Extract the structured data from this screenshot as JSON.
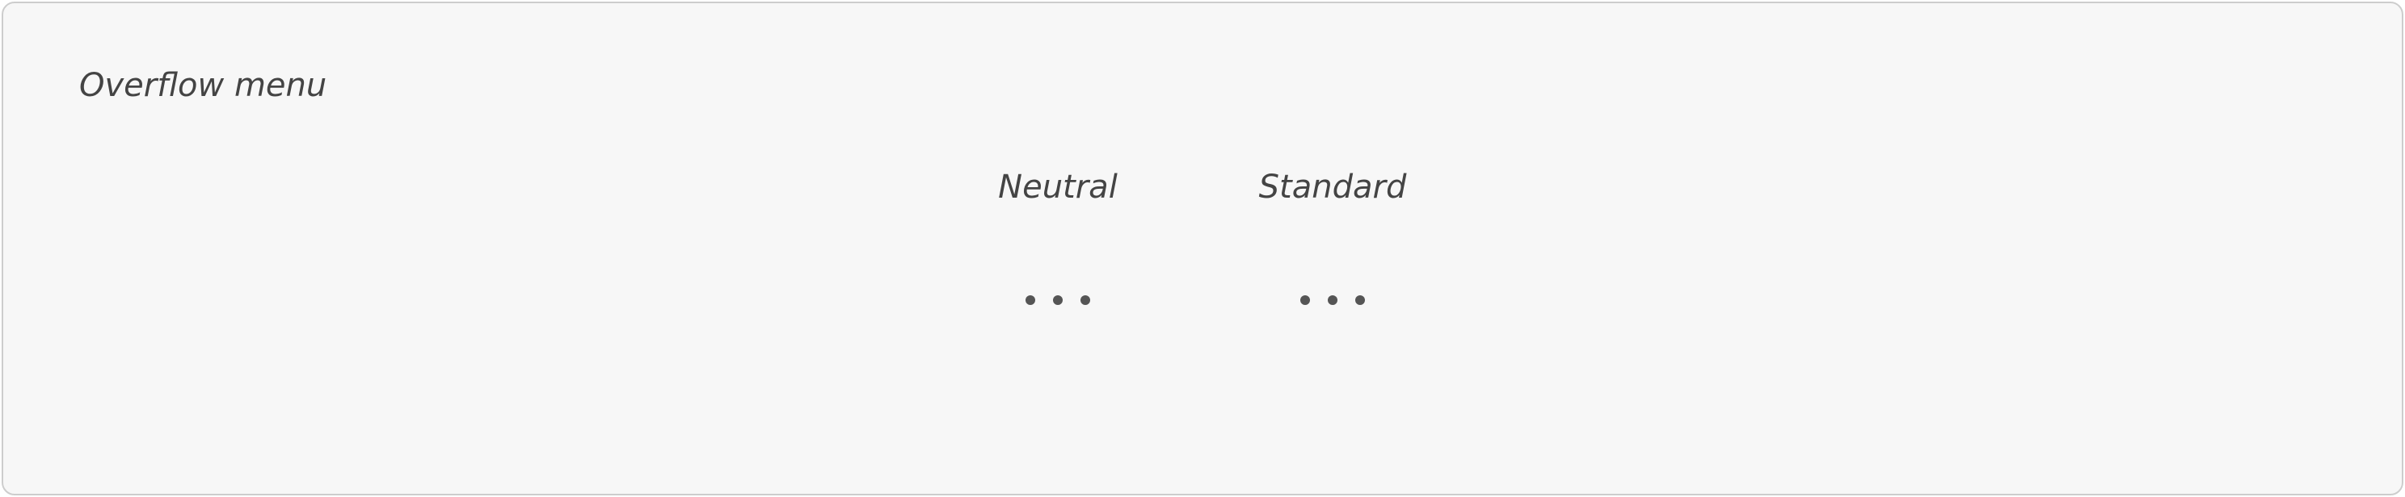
{
  "section": {
    "title": "Overflow menu"
  },
  "variants": [
    {
      "label": "Neutral",
      "icon": "overflow-horizontal-icon",
      "dot_color": "#555555"
    },
    {
      "label": "Standard",
      "icon": "overflow-horizontal-icon",
      "dot_color": "#555555"
    }
  ]
}
